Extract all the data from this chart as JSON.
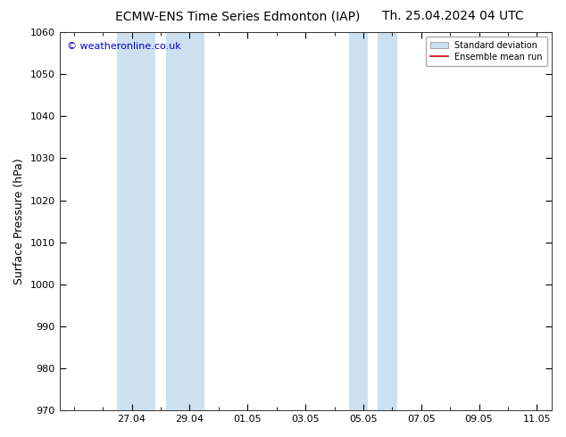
{
  "title_left": "ECMW-ENS Time Series Edmonton (IAP)",
  "title_right": "Th. 25.04.2024 04 UTC",
  "ylabel": "Surface Pressure (hPa)",
  "ylim": [
    970,
    1060
  ],
  "yticks": [
    970,
    980,
    990,
    1000,
    1010,
    1020,
    1030,
    1040,
    1050,
    1060
  ],
  "xlim_start": 25.17,
  "xlim_end": 11.5,
  "xtick_labels": [
    "27.04",
    "29.04",
    "01.05",
    "03.05",
    "05.05",
    "07.05",
    "09.05",
    "11.05"
  ],
  "shaded_bands": [
    {
      "xmin": 26.83,
      "xmax": 27.5
    },
    {
      "xmin": 28.5,
      "xmax": 29.17
    },
    {
      "xmin": 4.83,
      "xmax": 5.17
    },
    {
      "xmin": 5.5,
      "xmax": 6.17
    }
  ],
  "shaded_color": "#cce0f0",
  "ensemble_mean_color": "#cc0000",
  "watermark": "© weatheronline.co.uk",
  "watermark_color": "#0000cc",
  "background_color": "#ffffff",
  "plot_bg_color": "#ffffff",
  "title_fontsize": 10,
  "label_fontsize": 9,
  "tick_fontsize": 8
}
